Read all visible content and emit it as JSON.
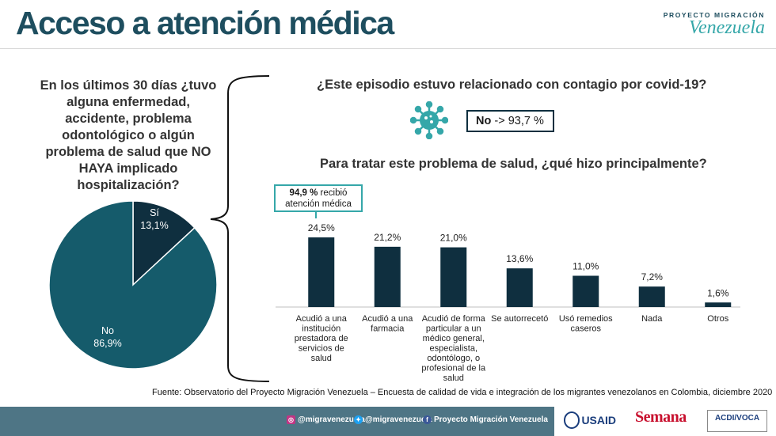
{
  "header": {
    "title": "Acceso a atención médica"
  },
  "logo": {
    "top": "PROYECTO MIGRACIÓN",
    "main": "Venezuela"
  },
  "left": {
    "question": "En los últimos 30 días ¿tuvo alguna enfermedad, accidente, problema odontológico o algún problema de salud que NO HAYA implicado hospitalización?"
  },
  "covid": {
    "question": "¿Este episodio estuvo relacionado con contagio por covid-19?",
    "answer_label": "No",
    "answer_value": " -> 93,7 %"
  },
  "treatment": {
    "question": "Para tratar este problema de salud, ¿qué hizo principalmente?"
  },
  "callout": {
    "bold": "94,9 %",
    "rest": " recibió atención médica"
  },
  "source": "Fuente: Observatorio del Proyecto Migración Venezuela – Encuesta de calidad de vida e integración de los migrantes venezolanos en Colombia, diciembre 2020",
  "footer": {
    "instagram": "@migravenezuela",
    "twitter": "@migravenezuela",
    "facebook": "Proyecto Migración Venezuela",
    "usaid": "USAID",
    "semana": "Semana",
    "acdi": "ACDI/VOCA"
  },
  "colors": {
    "dark": "#0f2f3f",
    "teal": "#155b6b",
    "accent": "#35a7a9",
    "title": "#1e4e5f"
  },
  "chart_data": [
    {
      "type": "pie",
      "slices": [
        {
          "label": "Sí",
          "value": 13.1,
          "value_label": "13,1%",
          "color": "#0f2f3f"
        },
        {
          "label": "No",
          "value": 86.9,
          "value_label": "86,9%",
          "color": "#155b6b"
        }
      ]
    },
    {
      "type": "bar",
      "categories": [
        [
          "Acudió a una",
          "institución",
          "prestadora de",
          "servicios de",
          "salud"
        ],
        [
          "Acudió a una",
          "farmacia"
        ],
        [
          "Acudió de forma",
          "particular a un",
          "médico general,",
          "especialista,",
          "odontólogo, o",
          "profesional de la",
          "salud"
        ],
        [
          "Se autorrecetó"
        ],
        [
          "Usó remedios",
          "caseros"
        ],
        [
          "Nada"
        ],
        [
          "Otros"
        ]
      ],
      "values": [
        24.5,
        21.2,
        21.0,
        13.6,
        11.0,
        7.2,
        1.6
      ],
      "value_labels": [
        "24,5%",
        "21,2%",
        "21,0%",
        "13,6%",
        "11,0%",
        "7,2%",
        "1,6%"
      ],
      "color": "#0f2f3f",
      "ylim": [
        0,
        30
      ]
    }
  ]
}
